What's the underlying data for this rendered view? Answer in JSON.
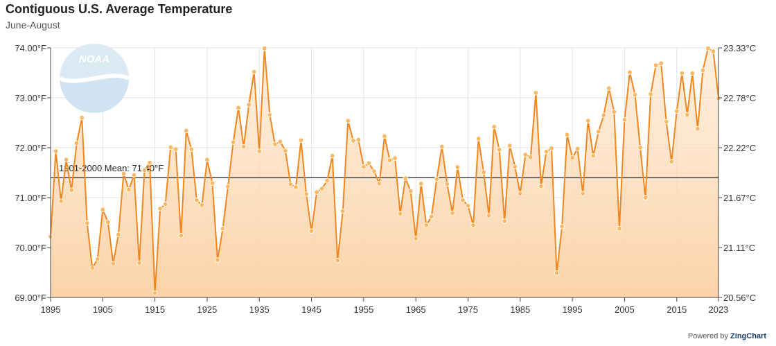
{
  "chart_data": {
    "type": "area",
    "title": "Contiguous U.S. Average Temperature",
    "subtitle": "June-August",
    "x": [
      1895,
      1896,
      1897,
      1898,
      1899,
      1900,
      1901,
      1902,
      1903,
      1904,
      1905,
      1906,
      1907,
      1908,
      1909,
      1910,
      1911,
      1912,
      1913,
      1914,
      1915,
      1916,
      1917,
      1918,
      1919,
      1920,
      1921,
      1922,
      1923,
      1924,
      1925,
      1926,
      1927,
      1928,
      1929,
      1930,
      1931,
      1932,
      1933,
      1934,
      1935,
      1936,
      1937,
      1938,
      1939,
      1940,
      1941,
      1942,
      1943,
      1944,
      1945,
      1946,
      1947,
      1948,
      1949,
      1950,
      1951,
      1952,
      1953,
      1954,
      1955,
      1956,
      1957,
      1958,
      1959,
      1960,
      1961,
      1962,
      1963,
      1964,
      1965,
      1966,
      1967,
      1968,
      1969,
      1970,
      1971,
      1972,
      1973,
      1974,
      1975,
      1976,
      1977,
      1978,
      1979,
      1980,
      1981,
      1982,
      1983,
      1984,
      1985,
      1986,
      1987,
      1988,
      1989,
      1990,
      1991,
      1992,
      1993,
      1994,
      1995,
      1996,
      1997,
      1998,
      1999,
      2000,
      2001,
      2002,
      2003,
      2004,
      2005,
      2006,
      2007,
      2008,
      2009,
      2010,
      2011,
      2012,
      2013,
      2014,
      2015,
      2016,
      2017,
      2018,
      2019,
      2020,
      2021,
      2022,
      2023
    ],
    "series": [
      {
        "values": [
          70.22,
          71.93,
          70.93,
          71.76,
          71.15,
          72.09,
          72.6,
          70.49,
          69.59,
          69.77,
          70.76,
          70.51,
          69.68,
          70.26,
          71.48,
          71.16,
          71.45,
          69.69,
          71.55,
          71.7,
          69.09,
          70.78,
          70.87,
          72.01,
          71.97,
          70.24,
          72.34,
          71.97,
          70.95,
          70.85,
          71.76,
          71.29,
          69.75,
          70.38,
          71.22,
          72.11,
          72.8,
          72.02,
          72.86,
          73.52,
          71.93,
          73.99,
          72.66,
          72.07,
          72.12,
          71.94,
          71.27,
          71.21,
          72.15,
          71.07,
          70.33,
          71.11,
          71.18,
          71.34,
          71.84,
          69.74,
          70.73,
          72.54,
          72.14,
          72.16,
          71.62,
          71.69,
          71.53,
          71.28,
          72.23,
          71.75,
          71.79,
          70.68,
          71.39,
          71.13,
          70.18,
          71.28,
          70.45,
          70.62,
          71.37,
          72.02,
          71.27,
          70.69,
          71.61,
          70.95,
          70.84,
          70.45,
          72.18,
          71.51,
          70.64,
          72.42,
          71.96,
          70.53,
          72.04,
          71.62,
          71.08,
          71.86,
          71.81,
          73.1,
          71.23,
          71.92,
          71.99,
          69.49,
          70.42,
          72.26,
          71.8,
          71.98,
          71.08,
          72.54,
          71.84,
          72.32,
          72.65,
          73.19,
          72.72,
          70.38,
          72.56,
          73.51,
          73.06,
          72.0,
          71.0,
          73.07,
          73.65,
          73.69,
          72.52,
          71.72,
          72.73,
          73.49,
          72.66,
          73.49,
          72.38,
          73.55,
          73.99,
          73.93,
          72.99
        ]
      }
    ],
    "xticks": [
      "1895",
      "1905",
      "1915",
      "1925",
      "1935",
      "1945",
      "1955",
      "1965",
      "1975",
      "1985",
      "1995",
      "2005",
      "2015",
      "2023"
    ],
    "yticks_left": [
      "69.00°F",
      "70.00°F",
      "71.00°F",
      "72.00°F",
      "73.00°F",
      "74.00°F"
    ],
    "yticks_right": [
      "20.56°C",
      "21.11°C",
      "21.67°C",
      "22.22°C",
      "22.78°C",
      "23.33°C"
    ],
    "xlim": [
      1895,
      2023
    ],
    "ylim": [
      69,
      74
    ],
    "mean": {
      "value": 71.4,
      "label": "1901-2000 Mean: 71.40°F"
    },
    "grid": true,
    "colors": {
      "line": "#f0861e",
      "marker": "#fbb860",
      "fill_top": "#fde1c4",
      "fill_bottom": "#fbd3a8",
      "mean_line": "#333333",
      "grid": "#e2e2e2"
    }
  },
  "logo": {
    "text": "NOAA",
    "icon": "noaa-logo-icon"
  },
  "credit": {
    "prefix": "Powered by",
    "brand": "ZingChart"
  }
}
